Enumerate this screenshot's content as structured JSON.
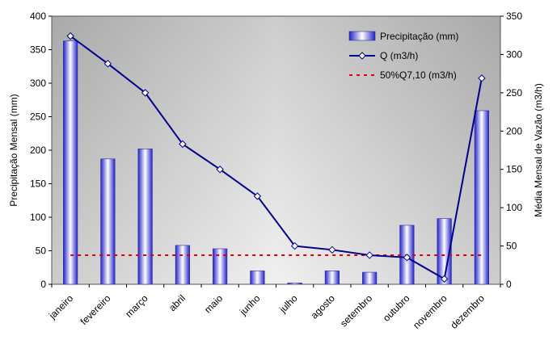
{
  "chart_data": {
    "type": "bar",
    "categories": [
      "janeiro",
      "fevereiro",
      "março",
      "abril",
      "maio",
      "junho",
      "julho",
      "agosto",
      "setembro",
      "outubro",
      "novembro",
      "dezembro"
    ],
    "series": [
      {
        "name": "Precipitação (mm)",
        "type": "bar",
        "axis": "left",
        "values": [
          363,
          187,
          202,
          58,
          53,
          20,
          2,
          20,
          18,
          88,
          98,
          259
        ]
      },
      {
        "name": "Q (m3/h)",
        "type": "line",
        "axis": "right",
        "values": [
          324,
          288,
          250,
          183,
          150,
          115,
          50,
          45,
          38,
          35,
          7,
          269
        ]
      },
      {
        "name": "50%Q7,10 (m3/h)",
        "type": "dashed-line",
        "axis": "right",
        "values": [
          38,
          38,
          38,
          38,
          38,
          38,
          38,
          38,
          38,
          38,
          38,
          38
        ]
      }
    ],
    "ylabel": "Precipitação Mensal (mm)",
    "y2label": "Média Mensal de Vazão (m3/h)",
    "ylim": [
      0,
      400
    ],
    "y2lim": [
      0,
      350
    ],
    "yticks": [
      0,
      50,
      100,
      150,
      200,
      250,
      300,
      350,
      400
    ],
    "y2ticks": [
      0,
      50,
      100,
      150,
      200,
      250,
      300,
      350
    ],
    "legend_position": "top-right",
    "colors": {
      "bar_dark": "#2323c8",
      "bar_light": "#ffffff",
      "line": "#00008b",
      "dashed": "#e00000",
      "bg_dark": "#b4b4b4",
      "bg_light": "#f2f2f2"
    }
  }
}
